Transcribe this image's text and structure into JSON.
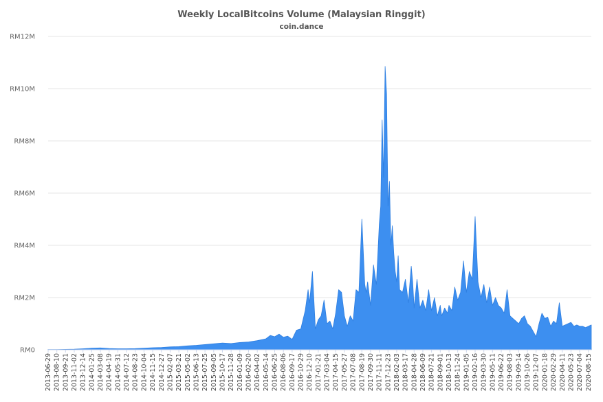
{
  "chart_data": {
    "type": "area",
    "title": "Weekly LocalBitcoins Volume (Malaysian Ringgit)",
    "subtitle": "coin.dance",
    "xlabel": "",
    "ylabel": "",
    "ylim": [
      0,
      12000000
    ],
    "y_ticks": [
      "RM0",
      "RM2M",
      "RM4M",
      "RM6M",
      "RM8M",
      "RM10M",
      "RM12M"
    ],
    "grid": true,
    "legend": "none",
    "color": "#3d8ff0",
    "x_tick_labels": [
      "2013-06-29",
      "2013-08-10",
      "2013-09-21",
      "2013-11-02",
      "2013-12-14",
      "2014-01-25",
      "2014-03-08",
      "2014-04-19",
      "2014-05-31",
      "2014-07-12",
      "2014-08-23",
      "2014-10-04",
      "2014-11-15",
      "2014-12-27",
      "2015-02-07",
      "2015-03-21",
      "2015-05-02",
      "2015-06-13",
      "2015-07-25",
      "2015-09-05",
      "2015-10-17",
      "2015-11-28",
      "2016-01-09",
      "2016-02-20",
      "2016-04-02",
      "2016-05-14",
      "2016-06-25",
      "2016-08-06",
      "2016-09-17",
      "2016-10-29",
      "2016-12-10",
      "2017-01-21",
      "2017-03-04",
      "2017-04-15",
      "2017-05-27",
      "2017-07-08",
      "2017-08-19",
      "2017-09-30",
      "2017-11-11",
      "2017-12-23",
      "2018-02-03",
      "2018-03-17",
      "2018-04-28",
      "2018-06-09",
      "2018-07-21",
      "2018-09-01",
      "2018-10-13",
      "2018-11-24",
      "2019-01-05",
      "2019-02-16",
      "2019-03-30",
      "2019-05-11",
      "2019-06-22",
      "2019-08-03",
      "2019-09-14",
      "2019-10-26",
      "2019-12-07",
      "2020-01-18",
      "2020-02-29",
      "2020-04-11",
      "2020-05-23",
      "2020-07-04",
      "2020-08-15"
    ],
    "x": [
      "2013-06-29",
      "2013-08-10",
      "2013-09-21",
      "2013-11-02",
      "2013-12-14",
      "2014-01-25",
      "2014-03-08",
      "2014-04-19",
      "2014-05-31",
      "2014-07-12",
      "2014-08-23",
      "2014-10-04",
      "2014-11-15",
      "2014-12-27",
      "2015-02-07",
      "2015-03-21",
      "2015-05-02",
      "2015-06-13",
      "2015-07-25",
      "2015-09-05",
      "2015-10-17",
      "2015-11-28",
      "2016-01-09",
      "2016-02-20",
      "2016-04-02",
      "2016-05-14",
      "2016-06-04",
      "2016-06-25",
      "2016-07-16",
      "2016-08-06",
      "2016-08-27",
      "2016-09-17",
      "2016-10-08",
      "2016-10-29",
      "2016-11-19",
      "2016-12-03",
      "2016-12-10",
      "2016-12-24",
      "2017-01-07",
      "2017-01-21",
      "2017-02-04",
      "2017-02-18",
      "2017-03-04",
      "2017-03-18",
      "2017-04-01",
      "2017-04-15",
      "2017-04-29",
      "2017-05-13",
      "2017-05-27",
      "2017-06-10",
      "2017-06-24",
      "2017-07-08",
      "2017-07-22",
      "2017-08-05",
      "2017-08-19",
      "2017-09-02",
      "2017-09-09",
      "2017-09-16",
      "2017-09-30",
      "2017-10-14",
      "2017-10-28",
      "2017-11-11",
      "2017-11-18",
      "2017-11-25",
      "2017-12-02",
      "2017-12-09",
      "2017-12-16",
      "2017-12-23",
      "2017-12-30",
      "2018-01-06",
      "2018-01-13",
      "2018-01-20",
      "2018-01-27",
      "2018-02-03",
      "2018-02-10",
      "2018-02-17",
      "2018-03-03",
      "2018-03-17",
      "2018-03-31",
      "2018-04-14",
      "2018-04-21",
      "2018-04-28",
      "2018-05-12",
      "2018-05-26",
      "2018-06-09",
      "2018-06-23",
      "2018-07-07",
      "2018-07-21",
      "2018-08-04",
      "2018-08-18",
      "2018-09-01",
      "2018-09-08",
      "2018-09-22",
      "2018-10-06",
      "2018-10-13",
      "2018-10-27",
      "2018-11-10",
      "2018-11-24",
      "2018-12-08",
      "2018-12-22",
      "2019-01-05",
      "2019-01-19",
      "2019-02-02",
      "2019-02-16",
      "2019-03-02",
      "2019-03-16",
      "2019-03-30",
      "2019-04-13",
      "2019-04-27",
      "2019-05-11",
      "2019-05-25",
      "2019-06-08",
      "2019-06-22",
      "2019-07-06",
      "2019-07-20",
      "2019-08-03",
      "2019-08-17",
      "2019-08-31",
      "2019-09-14",
      "2019-09-28",
      "2019-10-12",
      "2019-10-26",
      "2019-11-09",
      "2019-11-23",
      "2019-12-07",
      "2019-12-21",
      "2020-01-04",
      "2020-01-18",
      "2020-02-01",
      "2020-02-15",
      "2020-02-29",
      "2020-03-14",
      "2020-03-28",
      "2020-04-11",
      "2020-04-25",
      "2020-05-09",
      "2020-05-23",
      "2020-06-06",
      "2020-06-20",
      "2020-07-04",
      "2020-07-18",
      "2020-08-01",
      "2020-08-15",
      "2020-08-29"
    ],
    "values": [
      10000,
      10000,
      15000,
      20000,
      40000,
      60000,
      70000,
      50000,
      40000,
      40000,
      45000,
      60000,
      80000,
      90000,
      110000,
      120000,
      150000,
      170000,
      200000,
      230000,
      260000,
      240000,
      280000,
      300000,
      350000,
      420000,
      550000,
      500000,
      600000,
      480000,
      520000,
      400000,
      750000,
      800000,
      1500000,
      2300000,
      1800000,
      3000000,
      800000,
      1150000,
      1300000,
      1900000,
      1000000,
      1100000,
      800000,
      1400000,
      2300000,
      2200000,
      1300000,
      900000,
      1300000,
      1100000,
      2300000,
      2200000,
      5000000,
      2500000,
      2200000,
      2600000,
      1700000,
      3250000,
      2500000,
      4800000,
      5500000,
      8800000,
      6600000,
      10850000,
      9800000,
      5500000,
      6450000,
      4000000,
      4750000,
      3700000,
      3000000,
      2600000,
      3600000,
      2300000,
      2200000,
      2700000,
      1800000,
      3200000,
      2600000,
      1600000,
      2700000,
      1600000,
      1900000,
      1500000,
      2300000,
      1500000,
      2000000,
      1300000,
      1700000,
      1300000,
      1600000,
      1400000,
      1700000,
      1500000,
      2400000,
      1900000,
      2200000,
      3400000,
      2200000,
      3000000,
      2700000,
      5100000,
      2600000,
      2000000,
      2500000,
      1800000,
      2400000,
      1700000,
      2000000,
      1700000,
      1600000,
      1400000,
      2300000,
      1300000,
      1200000,
      1100000,
      1000000,
      1200000,
      1300000,
      1000000,
      900000,
      700000,
      500000,
      1000000,
      1400000,
      1200000,
      1250000,
      900000,
      1100000,
      1000000,
      1800000,
      900000,
      950000,
      1000000,
      1050000,
      900000,
      950000,
      900000,
      900000,
      850000,
      900000,
      950000
    ]
  }
}
